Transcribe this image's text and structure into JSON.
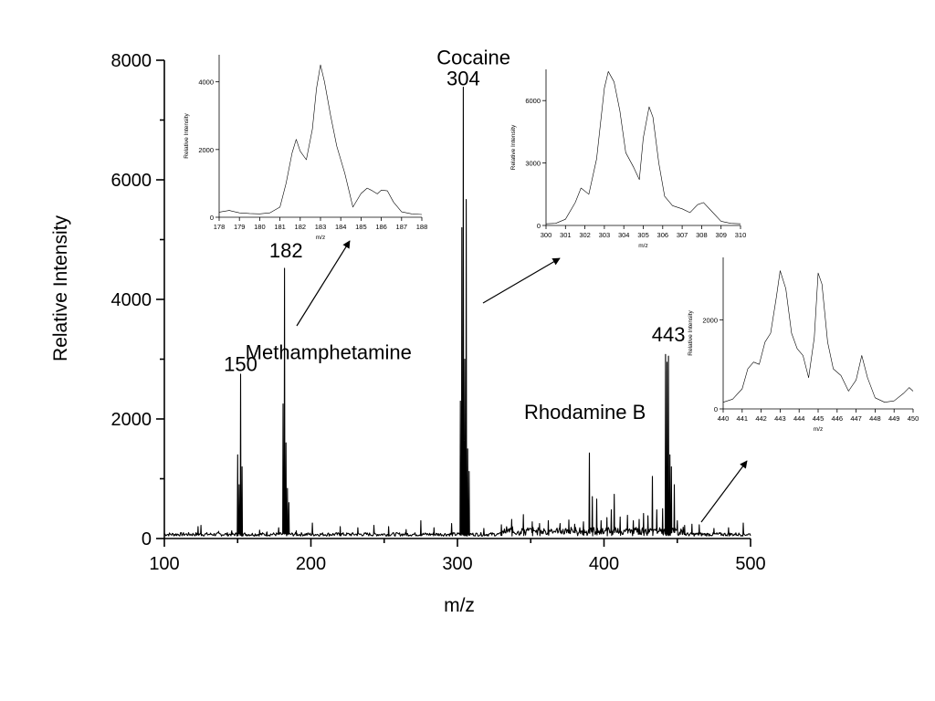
{
  "chart_data": {
    "main": {
      "type": "line",
      "xlabel": "m/z",
      "ylabel": "Relative Intensity",
      "xlim": [
        100,
        500
      ],
      "ylim": [
        0,
        8000
      ],
      "xticks": [
        100,
        200,
        300,
        400,
        500
      ],
      "yticks": [
        0,
        2000,
        4000,
        6000,
        8000
      ],
      "baseline": 40,
      "peaks": [
        [
          123,
          200
        ],
        [
          125,
          220
        ],
        [
          137,
          120
        ],
        [
          146,
          130
        ],
        [
          150,
          1400
        ],
        [
          151,
          900
        ],
        [
          152,
          2750
        ],
        [
          153,
          1200
        ],
        [
          165,
          140
        ],
        [
          170,
          110
        ],
        [
          178,
          180
        ],
        [
          181,
          2250
        ],
        [
          182,
          4520
        ],
        [
          183,
          1600
        ],
        [
          184,
          840
        ],
        [
          185,
          600
        ],
        [
          190,
          130
        ],
        [
          201,
          260
        ],
        [
          220,
          200
        ],
        [
          232,
          180
        ],
        [
          243,
          220
        ],
        [
          253,
          200
        ],
        [
          265,
          150
        ],
        [
          275,
          300
        ],
        [
          284,
          180
        ],
        [
          296,
          250
        ],
        [
          302,
          2300
        ],
        [
          303,
          5200
        ],
        [
          304,
          7550
        ],
        [
          305,
          3000
        ],
        [
          306,
          5670
        ],
        [
          307,
          1500
        ],
        [
          308,
          1120
        ],
        [
          318,
          170
        ],
        [
          330,
          230
        ],
        [
          337,
          320
        ],
        [
          345,
          400
        ],
        [
          351,
          280
        ],
        [
          356,
          250
        ],
        [
          362,
          300
        ],
        [
          370,
          250
        ],
        [
          376,
          310
        ],
        [
          380,
          240
        ],
        [
          386,
          280
        ],
        [
          390,
          1430
        ],
        [
          392,
          700
        ],
        [
          395,
          660
        ],
        [
          398,
          300
        ],
        [
          402,
          350
        ],
        [
          405,
          480
        ],
        [
          407,
          740
        ],
        [
          411,
          360
        ],
        [
          416,
          390
        ],
        [
          420,
          300
        ],
        [
          424,
          320
        ],
        [
          427,
          420
        ],
        [
          430,
          380
        ],
        [
          433,
          1040
        ],
        [
          436,
          480
        ],
        [
          440,
          500
        ],
        [
          442,
          3080
        ],
        [
          443,
          2950
        ],
        [
          444,
          3050
        ],
        [
          445,
          1400
        ],
        [
          446,
          1200
        ],
        [
          448,
          900
        ],
        [
          450,
          300
        ],
        [
          455,
          220
        ],
        [
          460,
          240
        ],
        [
          465,
          230
        ],
        [
          475,
          170
        ],
        [
          485,
          180
        ],
        [
          495,
          260
        ]
      ],
      "annotations": [
        {
          "text": "Methamphetamine",
          "x": 212,
          "y": 3000
        },
        {
          "text": "150",
          "x": 152,
          "y": 2800
        },
        {
          "text": "182",
          "x": 183,
          "y": 4700
        },
        {
          "text": "Cocaine",
          "x": 311,
          "y": 7930
        },
        {
          "text": "304",
          "x": 304,
          "y": 7580
        },
        {
          "text": "443",
          "x": 444,
          "y": 3300
        },
        {
          "text": "Rhodamine B",
          "x": 387,
          "y": 2000
        }
      ]
    },
    "insets": [
      {
        "type": "line",
        "xlabel": "m/z",
        "ylabel": "Relative Intensity",
        "xlim": [
          178,
          188
        ],
        "ylim": [
          0,
          4800
        ],
        "xticks": [
          178,
          179,
          180,
          181,
          182,
          183,
          184,
          185,
          186,
          187,
          188
        ],
        "yticks": [
          0,
          2000,
          4000
        ],
        "x": [
          178,
          178.5,
          179,
          179.5,
          180,
          180.5,
          181,
          181.3,
          181.6,
          181.8,
          182,
          182.3,
          182.6,
          182.8,
          183,
          183.2,
          183.5,
          183.8,
          184.2,
          184.6,
          185,
          185.3,
          185.5,
          185.8,
          186,
          186.3,
          186.6,
          187,
          187.5,
          188
        ],
        "y": [
          150,
          200,
          130,
          110,
          100,
          130,
          300,
          1000,
          1900,
          2300,
          1950,
          1700,
          2600,
          3800,
          4500,
          4000,
          3000,
          2100,
          1300,
          300,
          700,
          860,
          800,
          690,
          800,
          780,
          450,
          160,
          100,
          80
        ]
      },
      {
        "type": "line",
        "xlabel": "m/z",
        "ylabel": "Relative Intensity",
        "xlim": [
          300,
          310
        ],
        "ylim": [
          0,
          7500
        ],
        "xticks": [
          300,
          301,
          302,
          303,
          304,
          305,
          306,
          307,
          308,
          309,
          310
        ],
        "yticks": [
          0,
          3000,
          6000
        ],
        "x": [
          300,
          300.5,
          301,
          301.5,
          301.8,
          302.2,
          302.6,
          303,
          303.2,
          303.5,
          303.8,
          304.1,
          304.5,
          304.8,
          305,
          305.3,
          305.5,
          305.8,
          306.1,
          306.5,
          307,
          307.4,
          307.8,
          308.1,
          308.5,
          309,
          309.5,
          310
        ],
        "y": [
          80,
          100,
          300,
          1100,
          1800,
          1500,
          3200,
          6600,
          7400,
          6900,
          5500,
          3500,
          2800,
          2200,
          4200,
          5700,
          5200,
          3000,
          1400,
          950,
          800,
          620,
          1000,
          1100,
          700,
          200,
          100,
          80
        ]
      },
      {
        "type": "line",
        "xlabel": "m/z",
        "ylabel": "Relative Intensity",
        "xlim": [
          440,
          450
        ],
        "ylim": [
          0,
          3400
        ],
        "xticks": [
          440,
          441,
          442,
          443,
          444,
          445,
          446,
          447,
          448,
          449,
          450
        ],
        "yticks": [
          0,
          2000
        ],
        "x": [
          440,
          440.5,
          441,
          441.3,
          441.6,
          441.9,
          442.2,
          442.5,
          442.8,
          443,
          443.3,
          443.6,
          443.9,
          444.2,
          444.5,
          444.8,
          445,
          445.2,
          445.5,
          445.8,
          446.2,
          446.6,
          447,
          447.3,
          447.6,
          448,
          448.5,
          449,
          449.5,
          449.8,
          450
        ],
        "y": [
          150,
          220,
          450,
          900,
          1050,
          1000,
          1500,
          1700,
          2500,
          3100,
          2700,
          1700,
          1350,
          1200,
          700,
          1600,
          3050,
          2800,
          1500,
          900,
          750,
          400,
          650,
          1200,
          700,
          250,
          150,
          180,
          350,
          480,
          400
        ]
      }
    ]
  }
}
